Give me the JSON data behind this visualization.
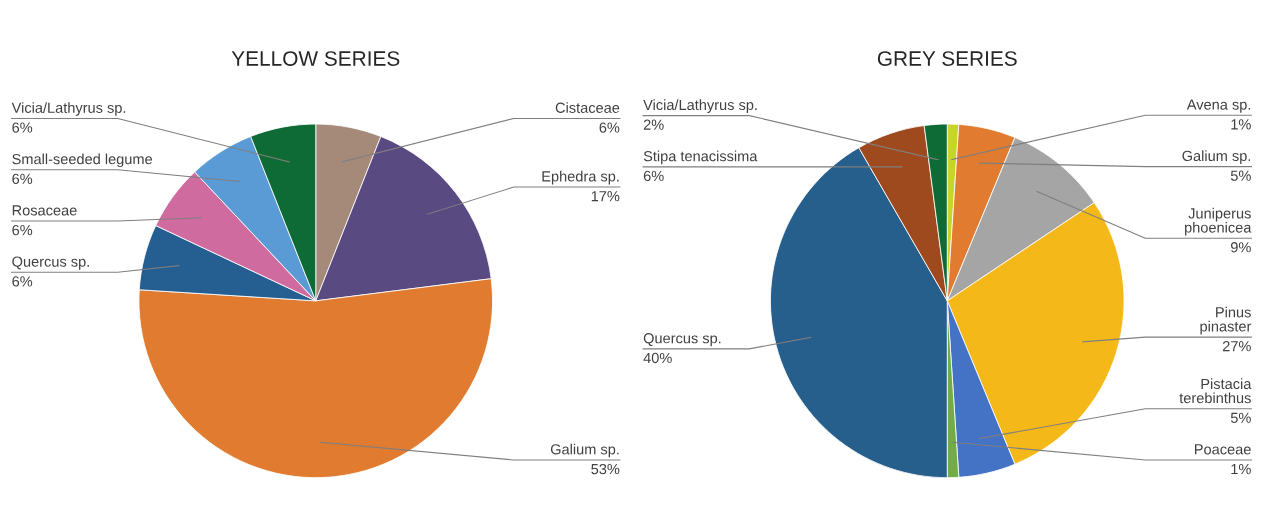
{
  "chart_data": [
    {
      "type": "pie",
      "title": "YELLOW SERIES",
      "categories": [
        "Cistaceae",
        "Ephedra sp.",
        "Galium sp.",
        "Quercus sp.",
        "Rosaceae",
        "Small-seeded legume",
        "Vicia/Lathyrus sp."
      ],
      "values": [
        6,
        17,
        53,
        6,
        6,
        6,
        6
      ],
      "value_labels": [
        "6%",
        "17%",
        "53%",
        "6%",
        "6%",
        "6%",
        "6%"
      ],
      "colors": [
        "#a58a7a",
        "#5a4a82",
        "#e07b30",
        "#255e91",
        "#d06b9f",
        "#5b9bd5",
        "#0e6b35"
      ]
    },
    {
      "type": "pie",
      "title": "GREY SERIES",
      "categories": [
        "Avena sp.",
        "Galium sp.",
        "Juniperus\nphoenicea",
        "Pinus\npinaster",
        "Pistacia\nterebinthus",
        "Poaceae",
        "Quercus sp.",
        "Stipa tenacissima",
        "Vicia/Lathyrus sp."
      ],
      "values": [
        1,
        5,
        9,
        27,
        5,
        1,
        40,
        6,
        2
      ],
      "value_labels": [
        "1%",
        "5%",
        "9%",
        "27%",
        "5%",
        "1%",
        "40%",
        "6%",
        "2%"
      ],
      "colors": [
        "#c8d42a",
        "#e07b30",
        "#a5a5a5",
        "#f4b818",
        "#4472c4",
        "#70ad47",
        "#265e8c",
        "#9e4a1e",
        "#0e6b35"
      ]
    }
  ]
}
